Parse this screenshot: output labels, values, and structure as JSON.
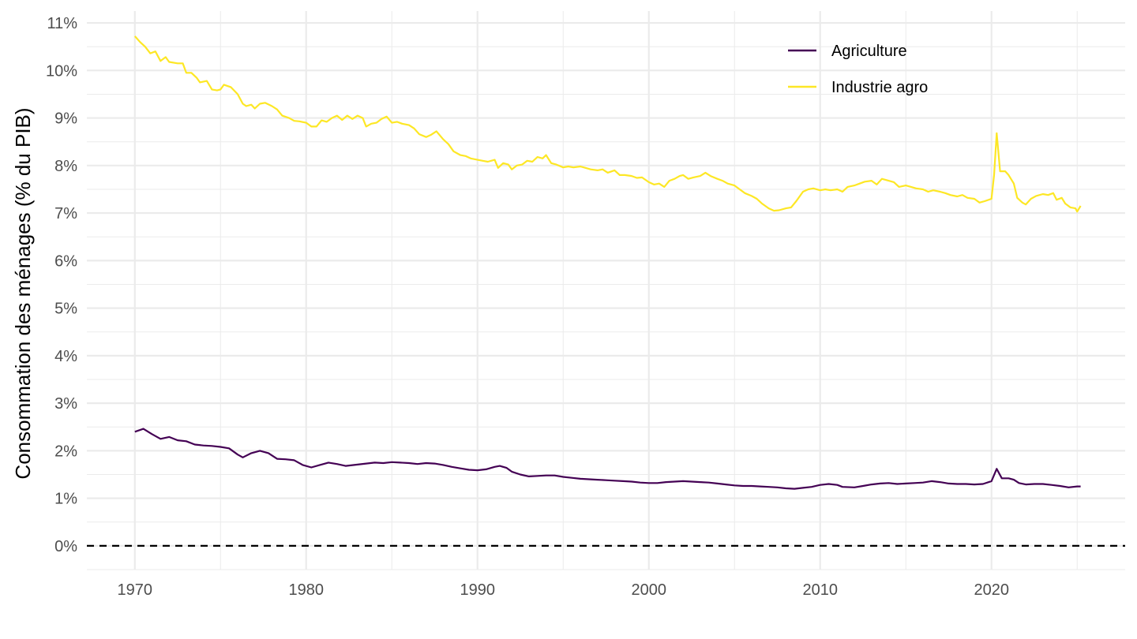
{
  "chart_data": {
    "type": "line",
    "title": "",
    "xlabel": "",
    "ylabel": "Consommation des ménages (% du PIB)",
    "xlim": [
      1967.2,
      2027.8
    ],
    "ylim": [
      -0.5,
      11.25
    ],
    "x_ticks": [
      {
        "value": 1970,
        "label": "1970"
      },
      {
        "value": 1980,
        "label": "1980"
      },
      {
        "value": 1990,
        "label": "1990"
      },
      {
        "value": 2000,
        "label": "2000"
      },
      {
        "value": 2010,
        "label": "2010"
      },
      {
        "value": 2020,
        "label": "2020"
      }
    ],
    "y_ticks": [
      {
        "value": 0,
        "label": "0%"
      },
      {
        "value": 1,
        "label": "1%"
      },
      {
        "value": 2,
        "label": "2%"
      },
      {
        "value": 3,
        "label": "3%"
      },
      {
        "value": 4,
        "label": "4%"
      },
      {
        "value": 5,
        "label": "5%"
      },
      {
        "value": 6,
        "label": "6%"
      },
      {
        "value": 7,
        "label": "7%"
      },
      {
        "value": 8,
        "label": "8%"
      },
      {
        "value": 9,
        "label": "9%"
      },
      {
        "value": 10,
        "label": "10%"
      },
      {
        "value": 11,
        "label": "11%"
      }
    ],
    "grid": true,
    "reference_line": {
      "y": 0,
      "style": "dashed",
      "color": "#000000"
    },
    "legend_position": "top-right",
    "series": [
      {
        "name": "Agriculture",
        "color": "#440154",
        "points": [
          [
            1970.0,
            2.4
          ],
          [
            1970.5,
            2.46
          ],
          [
            1971.0,
            2.35
          ],
          [
            1971.5,
            2.25
          ],
          [
            1972.0,
            2.29
          ],
          [
            1972.5,
            2.22
          ],
          [
            1973.0,
            2.2
          ],
          [
            1973.5,
            2.13
          ],
          [
            1974.0,
            2.11
          ],
          [
            1974.5,
            2.1
          ],
          [
            1975.0,
            2.08
          ],
          [
            1975.5,
            2.05
          ],
          [
            1976.0,
            1.92
          ],
          [
            1976.3,
            1.86
          ],
          [
            1976.8,
            1.95
          ],
          [
            1977.3,
            2.0
          ],
          [
            1977.8,
            1.95
          ],
          [
            1978.3,
            1.83
          ],
          [
            1978.8,
            1.82
          ],
          [
            1979.3,
            1.8
          ],
          [
            1979.8,
            1.7
          ],
          [
            1980.3,
            1.65
          ],
          [
            1980.8,
            1.7
          ],
          [
            1981.3,
            1.75
          ],
          [
            1981.8,
            1.72
          ],
          [
            1982.3,
            1.68
          ],
          [
            1982.8,
            1.7
          ],
          [
            1983.5,
            1.73
          ],
          [
            1984.0,
            1.75
          ],
          [
            1984.5,
            1.74
          ],
          [
            1985.0,
            1.76
          ],
          [
            1985.5,
            1.75
          ],
          [
            1986.0,
            1.74
          ],
          [
            1986.5,
            1.72
          ],
          [
            1987.0,
            1.74
          ],
          [
            1987.5,
            1.73
          ],
          [
            1988.0,
            1.7
          ],
          [
            1988.5,
            1.66
          ],
          [
            1989.0,
            1.63
          ],
          [
            1989.5,
            1.6
          ],
          [
            1990.0,
            1.59
          ],
          [
            1990.5,
            1.61
          ],
          [
            1991.0,
            1.66
          ],
          [
            1991.3,
            1.68
          ],
          [
            1991.7,
            1.64
          ],
          [
            1992.0,
            1.56
          ],
          [
            1992.5,
            1.5
          ],
          [
            1993.0,
            1.46
          ],
          [
            1993.5,
            1.47
          ],
          [
            1994.0,
            1.48
          ],
          [
            1994.5,
            1.48
          ],
          [
            1995.0,
            1.45
          ],
          [
            1995.5,
            1.43
          ],
          [
            1996.0,
            1.41
          ],
          [
            1996.5,
            1.4
          ],
          [
            1997.0,
            1.39
          ],
          [
            1997.5,
            1.38
          ],
          [
            1998.0,
            1.37
          ],
          [
            1998.5,
            1.36
          ],
          [
            1999.0,
            1.35
          ],
          [
            1999.5,
            1.33
          ],
          [
            2000.0,
            1.32
          ],
          [
            2000.5,
            1.32
          ],
          [
            2001.0,
            1.34
          ],
          [
            2001.5,
            1.35
          ],
          [
            2002.0,
            1.36
          ],
          [
            2002.5,
            1.35
          ],
          [
            2003.0,
            1.34
          ],
          [
            2003.5,
            1.33
          ],
          [
            2004.0,
            1.31
          ],
          [
            2004.5,
            1.29
          ],
          [
            2005.0,
            1.27
          ],
          [
            2005.5,
            1.26
          ],
          [
            2006.0,
            1.26
          ],
          [
            2006.5,
            1.25
          ],
          [
            2007.0,
            1.24
          ],
          [
            2007.5,
            1.23
          ],
          [
            2008.0,
            1.21
          ],
          [
            2008.5,
            1.2
          ],
          [
            2009.0,
            1.22
          ],
          [
            2009.5,
            1.24
          ],
          [
            2010.0,
            1.28
          ],
          [
            2010.5,
            1.3
          ],
          [
            2011.0,
            1.28
          ],
          [
            2011.3,
            1.24
          ],
          [
            2012.0,
            1.23
          ],
          [
            2012.5,
            1.26
          ],
          [
            2013.0,
            1.29
          ],
          [
            2013.5,
            1.31
          ],
          [
            2014.0,
            1.32
          ],
          [
            2014.5,
            1.3
          ],
          [
            2015.0,
            1.31
          ],
          [
            2015.5,
            1.32
          ],
          [
            2016.0,
            1.33
          ],
          [
            2016.5,
            1.36
          ],
          [
            2017.0,
            1.34
          ],
          [
            2017.5,
            1.31
          ],
          [
            2018.0,
            1.3
          ],
          [
            2018.5,
            1.3
          ],
          [
            2019.0,
            1.29
          ],
          [
            2019.5,
            1.3
          ],
          [
            2020.0,
            1.36
          ],
          [
            2020.3,
            1.62
          ],
          [
            2020.6,
            1.42
          ],
          [
            2021.0,
            1.42
          ],
          [
            2021.3,
            1.39
          ],
          [
            2021.6,
            1.32
          ],
          [
            2022.0,
            1.29
          ],
          [
            2022.5,
            1.3
          ],
          [
            2023.0,
            1.3
          ],
          [
            2023.5,
            1.28
          ],
          [
            2024.0,
            1.26
          ],
          [
            2024.5,
            1.23
          ],
          [
            2025.0,
            1.25
          ],
          [
            2025.2,
            1.25
          ]
        ]
      },
      {
        "name": "Industrie agro",
        "color": "#fde725",
        "points": [
          [
            1970.0,
            10.72
          ],
          [
            1970.3,
            10.6
          ],
          [
            1970.6,
            10.5
          ],
          [
            1970.9,
            10.36
          ],
          [
            1971.2,
            10.4
          ],
          [
            1971.5,
            10.2
          ],
          [
            1971.8,
            10.28
          ],
          [
            1972.0,
            10.18
          ],
          [
            1972.5,
            10.15
          ],
          [
            1972.8,
            10.15
          ],
          [
            1973.0,
            9.95
          ],
          [
            1973.3,
            9.95
          ],
          [
            1973.6,
            9.85
          ],
          [
            1973.8,
            9.75
          ],
          [
            1974.2,
            9.78
          ],
          [
            1974.5,
            9.6
          ],
          [
            1974.8,
            9.58
          ],
          [
            1975.0,
            9.6
          ],
          [
            1975.2,
            9.7
          ],
          [
            1975.6,
            9.65
          ],
          [
            1976.0,
            9.5
          ],
          [
            1976.3,
            9.3
          ],
          [
            1976.5,
            9.25
          ],
          [
            1976.8,
            9.28
          ],
          [
            1977.0,
            9.2
          ],
          [
            1977.3,
            9.3
          ],
          [
            1977.6,
            9.32
          ],
          [
            1978.0,
            9.25
          ],
          [
            1978.3,
            9.18
          ],
          [
            1978.6,
            9.05
          ],
          [
            1979.0,
            9.0
          ],
          [
            1979.3,
            8.94
          ],
          [
            1979.6,
            8.93
          ],
          [
            1980.0,
            8.9
          ],
          [
            1980.3,
            8.82
          ],
          [
            1980.6,
            8.82
          ],
          [
            1980.9,
            8.95
          ],
          [
            1981.2,
            8.92
          ],
          [
            1981.5,
            9.0
          ],
          [
            1981.8,
            9.05
          ],
          [
            1982.1,
            8.96
          ],
          [
            1982.4,
            9.05
          ],
          [
            1982.7,
            8.98
          ],
          [
            1983.0,
            9.05
          ],
          [
            1983.3,
            9.0
          ],
          [
            1983.5,
            8.82
          ],
          [
            1983.8,
            8.88
          ],
          [
            1984.1,
            8.9
          ],
          [
            1984.4,
            8.98
          ],
          [
            1984.7,
            9.03
          ],
          [
            1985.0,
            8.9
          ],
          [
            1985.3,
            8.92
          ],
          [
            1985.6,
            8.88
          ],
          [
            1986.0,
            8.85
          ],
          [
            1986.3,
            8.78
          ],
          [
            1986.6,
            8.66
          ],
          [
            1987.0,
            8.6
          ],
          [
            1987.3,
            8.65
          ],
          [
            1987.6,
            8.72
          ],
          [
            1988.0,
            8.55
          ],
          [
            1988.3,
            8.45
          ],
          [
            1988.6,
            8.3
          ],
          [
            1989.0,
            8.22
          ],
          [
            1989.3,
            8.2
          ],
          [
            1989.6,
            8.15
          ],
          [
            1990.0,
            8.12
          ],
          [
            1990.3,
            8.1
          ],
          [
            1990.6,
            8.08
          ],
          [
            1991.0,
            8.12
          ],
          [
            1991.2,
            7.95
          ],
          [
            1991.5,
            8.05
          ],
          [
            1991.8,
            8.02
          ],
          [
            1992.0,
            7.92
          ],
          [
            1992.3,
            8.0
          ],
          [
            1992.6,
            8.02
          ],
          [
            1992.9,
            8.1
          ],
          [
            1993.2,
            8.08
          ],
          [
            1993.5,
            8.18
          ],
          [
            1993.8,
            8.15
          ],
          [
            1994.0,
            8.22
          ],
          [
            1994.3,
            8.05
          ],
          [
            1994.6,
            8.02
          ],
          [
            1995.0,
            7.96
          ],
          [
            1995.3,
            7.98
          ],
          [
            1995.6,
            7.96
          ],
          [
            1996.0,
            7.98
          ],
          [
            1996.3,
            7.95
          ],
          [
            1996.6,
            7.92
          ],
          [
            1997.0,
            7.9
          ],
          [
            1997.3,
            7.92
          ],
          [
            1997.6,
            7.85
          ],
          [
            1998.0,
            7.9
          ],
          [
            1998.3,
            7.8
          ],
          [
            1998.6,
            7.8
          ],
          [
            1999.0,
            7.78
          ],
          [
            1999.3,
            7.74
          ],
          [
            1999.6,
            7.75
          ],
          [
            2000.0,
            7.65
          ],
          [
            2000.3,
            7.6
          ],
          [
            2000.6,
            7.62
          ],
          [
            2000.9,
            7.55
          ],
          [
            2001.2,
            7.68
          ],
          [
            2001.5,
            7.72
          ],
          [
            2001.8,
            7.78
          ],
          [
            2002.0,
            7.8
          ],
          [
            2002.3,
            7.72
          ],
          [
            2002.6,
            7.75
          ],
          [
            2003.0,
            7.78
          ],
          [
            2003.3,
            7.85
          ],
          [
            2003.6,
            7.78
          ],
          [
            2004.0,
            7.72
          ],
          [
            2004.3,
            7.68
          ],
          [
            2004.6,
            7.62
          ],
          [
            2005.0,
            7.58
          ],
          [
            2005.3,
            7.5
          ],
          [
            2005.6,
            7.42
          ],
          [
            2006.0,
            7.36
          ],
          [
            2006.3,
            7.3
          ],
          [
            2006.6,
            7.2
          ],
          [
            2007.0,
            7.1
          ],
          [
            2007.3,
            7.05
          ],
          [
            2007.6,
            7.06
          ],
          [
            2008.0,
            7.1
          ],
          [
            2008.3,
            7.12
          ],
          [
            2008.6,
            7.25
          ],
          [
            2009.0,
            7.45
          ],
          [
            2009.3,
            7.5
          ],
          [
            2009.6,
            7.52
          ],
          [
            2010.0,
            7.48
          ],
          [
            2010.3,
            7.5
          ],
          [
            2010.6,
            7.48
          ],
          [
            2011.0,
            7.5
          ],
          [
            2011.3,
            7.45
          ],
          [
            2011.6,
            7.55
          ],
          [
            2012.0,
            7.58
          ],
          [
            2012.3,
            7.62
          ],
          [
            2012.6,
            7.66
          ],
          [
            2013.0,
            7.68
          ],
          [
            2013.3,
            7.6
          ],
          [
            2013.6,
            7.72
          ],
          [
            2014.0,
            7.68
          ],
          [
            2014.3,
            7.65
          ],
          [
            2014.6,
            7.55
          ],
          [
            2015.0,
            7.58
          ],
          [
            2015.3,
            7.55
          ],
          [
            2015.6,
            7.52
          ],
          [
            2016.0,
            7.5
          ],
          [
            2016.3,
            7.45
          ],
          [
            2016.6,
            7.48
          ],
          [
            2017.0,
            7.45
          ],
          [
            2017.3,
            7.42
          ],
          [
            2017.6,
            7.38
          ],
          [
            2018.0,
            7.35
          ],
          [
            2018.3,
            7.38
          ],
          [
            2018.6,
            7.32
          ],
          [
            2019.0,
            7.3
          ],
          [
            2019.3,
            7.22
          ],
          [
            2019.6,
            7.25
          ],
          [
            2020.0,
            7.3
          ],
          [
            2020.15,
            7.8
          ],
          [
            2020.3,
            8.68
          ],
          [
            2020.5,
            7.88
          ],
          [
            2020.8,
            7.88
          ],
          [
            2021.0,
            7.8
          ],
          [
            2021.3,
            7.62
          ],
          [
            2021.5,
            7.32
          ],
          [
            2021.8,
            7.22
          ],
          [
            2022.0,
            7.18
          ],
          [
            2022.3,
            7.3
          ],
          [
            2022.6,
            7.36
          ],
          [
            2023.0,
            7.4
          ],
          [
            2023.3,
            7.38
          ],
          [
            2023.6,
            7.42
          ],
          [
            2023.8,
            7.28
          ],
          [
            2024.1,
            7.32
          ],
          [
            2024.3,
            7.2
          ],
          [
            2024.6,
            7.12
          ],
          [
            2024.9,
            7.1
          ],
          [
            2025.0,
            7.03
          ],
          [
            2025.2,
            7.15
          ]
        ]
      }
    ]
  }
}
